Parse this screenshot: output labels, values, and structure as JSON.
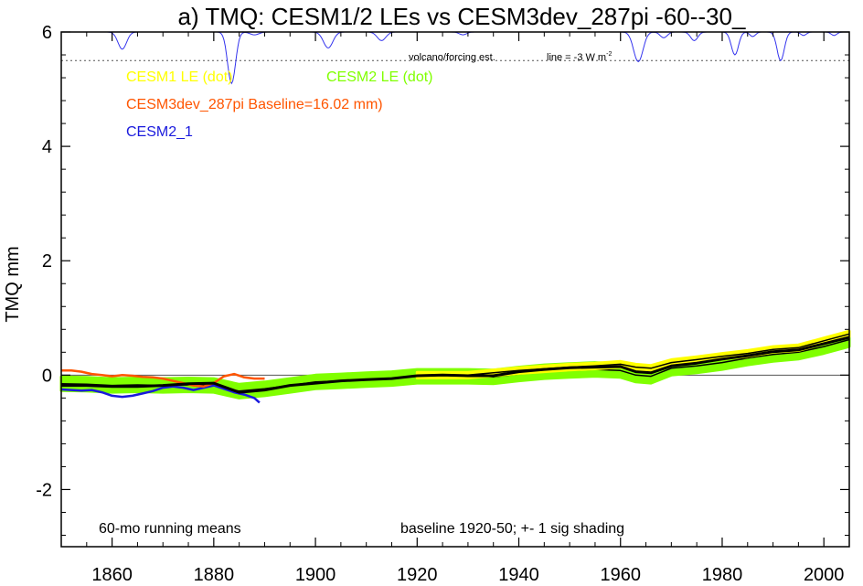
{
  "chart_data": {
    "type": "line",
    "title": "a) TMQ: CESM1/2 LEs vs CESM3dev_287pi -60--30_",
    "xlabel": "",
    "ylabel": "TMQ mm",
    "xlim": [
      1850,
      2005
    ],
    "ylim": [
      -3,
      6
    ],
    "x_ticks": [
      1860,
      1880,
      1900,
      1920,
      1940,
      1960,
      1980,
      2000
    ],
    "y_ticks": [
      -2,
      0,
      2,
      4,
      6
    ],
    "x_ticks_minor": [
      1850,
      1855,
      1865,
      1870,
      1875,
      1885,
      1890,
      1895,
      1905,
      1910,
      1915,
      1925,
      1930,
      1935,
      1945,
      1950,
      1955,
      1965,
      1970,
      1975,
      1985,
      1990,
      1995
    ],
    "y_ticks_minor": [
      -2.8,
      -2.4,
      -1.6,
      -1.2,
      -0.8,
      -0.4,
      0.4,
      0.8,
      1.2,
      1.6,
      2.4,
      2.8,
      3.2,
      3.6,
      4.4,
      4.8,
      5.2,
      5.6
    ],
    "legend": [
      {
        "label": "CESM1 LE (dot)",
        "color": "#ffff00"
      },
      {
        "label": "CESM2 LE (dot)",
        "color": "#80ff00"
      },
      {
        "label": "CESM3dev_287pi Baseline=16.02 mm)",
        "color": "#ff5500"
      },
      {
        "label": "CESM2_1",
        "color": "#1a1add"
      }
    ],
    "annotations": {
      "volcano": "volcano/forcing est.",
      "line_label": "line = -3 W m",
      "line_sup": "-2",
      "running": "60-mo running means",
      "baseline": "baseline 1920-50; +- 1 sig shading"
    },
    "reference_lines": {
      "zero": 0,
      "forcing_dotted": 5.5
    },
    "series": [
      {
        "name": "CESM1 LE (dot)",
        "color": "#ffff00",
        "x": [
          1920,
          1930,
          1940,
          1950,
          1955,
          1960,
          1963,
          1966,
          1970,
          1975,
          1980,
          1985,
          1990,
          1995,
          2000,
          2005
        ],
        "y": [
          0.0,
          0.0,
          0.08,
          0.14,
          0.16,
          0.19,
          0.14,
          0.12,
          0.22,
          0.27,
          0.33,
          0.38,
          0.45,
          0.48,
          0.6,
          0.72
        ],
        "band": 0.05
      },
      {
        "name": "CESM2 LE (dot)",
        "color": "#80ff00",
        "x": [
          1850,
          1855,
          1860,
          1865,
          1870,
          1875,
          1880,
          1885,
          1890,
          1895,
          1900,
          1905,
          1910,
          1915,
          1920,
          1925,
          1930,
          1935,
          1940,
          1945,
          1950,
          1955,
          1960,
          1963,
          1966,
          1970,
          1975,
          1980,
          1985,
          1990,
          1995,
          2000,
          2005
        ],
        "y": [
          -0.15,
          -0.16,
          -0.18,
          -0.17,
          -0.18,
          -0.17,
          -0.18,
          -0.28,
          -0.24,
          -0.18,
          -0.12,
          -0.1,
          -0.08,
          -0.06,
          -0.02,
          -0.02,
          -0.02,
          -0.03,
          0.02,
          0.06,
          0.08,
          0.1,
          0.08,
          0.0,
          -0.02,
          0.12,
          0.16,
          0.22,
          0.3,
          0.36,
          0.4,
          0.5,
          0.62
        ],
        "band": 0.12
      },
      {
        "name": "CESM3dev_287pi Baseline=16.02 mm)",
        "color": "#ff5500",
        "x": [
          1850,
          1852,
          1854,
          1856,
          1858,
          1860,
          1862,
          1864,
          1866,
          1868,
          1870,
          1872,
          1874,
          1876,
          1878,
          1880,
          1882,
          1884,
          1886,
          1888,
          1890
        ],
        "y": [
          0.08,
          0.08,
          0.06,
          0.02,
          0.0,
          -0.02,
          0.0,
          -0.01,
          -0.03,
          -0.04,
          -0.06,
          -0.1,
          -0.14,
          -0.18,
          -0.2,
          -0.14,
          -0.02,
          0.02,
          -0.04,
          -0.06,
          -0.06
        ]
      },
      {
        "name": "CESM2_1",
        "color": "#1a1add",
        "x": [
          1850,
          1852,
          1854,
          1856,
          1858,
          1860,
          1862,
          1864,
          1866,
          1868,
          1870,
          1872,
          1874,
          1876,
          1878,
          1880,
          1882,
          1884,
          1886,
          1888,
          1889
        ],
        "y": [
          -0.25,
          -0.26,
          -0.27,
          -0.26,
          -0.3,
          -0.36,
          -0.38,
          -0.36,
          -0.32,
          -0.28,
          -0.22,
          -0.2,
          -0.22,
          -0.26,
          -0.22,
          -0.18,
          -0.24,
          -0.3,
          -0.34,
          -0.4,
          -0.48
        ]
      },
      {
        "name": "",
        "color": "#000000",
        "x": [
          1850,
          1855,
          1860,
          1865,
          1870,
          1875,
          1880,
          1885,
          1890,
          1895,
          1900,
          1905,
          1910,
          1915,
          1920,
          1925,
          1930,
          1935,
          1940,
          1945,
          1950,
          1955,
          1960,
          1963,
          1966,
          1970,
          1975,
          1980,
          1985,
          1990,
          1995,
          2000,
          2005
        ],
        "y": [
          -0.18,
          -0.18,
          -0.2,
          -0.2,
          -0.18,
          -0.15,
          -0.14,
          -0.3,
          -0.26,
          -0.18,
          -0.14,
          -0.1,
          -0.08,
          -0.06,
          -0.01,
          0.0,
          -0.01,
          -0.01,
          0.06,
          0.1,
          0.13,
          0.14,
          0.15,
          0.06,
          0.04,
          0.16,
          0.21,
          0.28,
          0.34,
          0.41,
          0.44,
          0.55,
          0.66
        ]
      }
    ],
    "forcing": {
      "color": "#3333ee",
      "baseline": 6.0,
      "bottom": 5.4,
      "dips": [
        {
          "year": 1862,
          "depth": 5.7,
          "width": 1.2
        },
        {
          "year": 1883.5,
          "depth": 5.1,
          "width": 1.1
        },
        {
          "year": 1888,
          "depth": 5.95,
          "width": 1.2
        },
        {
          "year": 1902.5,
          "depth": 5.72,
          "width": 1.3
        },
        {
          "year": 1913,
          "depth": 5.85,
          "width": 1.2
        },
        {
          "year": 1929,
          "depth": 5.95,
          "width": 1.0
        },
        {
          "year": 1963.5,
          "depth": 5.48,
          "width": 1.3
        },
        {
          "year": 1968.5,
          "depth": 5.9,
          "width": 1.0
        },
        {
          "year": 1974.5,
          "depth": 5.85,
          "width": 1.0
        },
        {
          "year": 1982.5,
          "depth": 5.6,
          "width": 1.0
        },
        {
          "year": 1986,
          "depth": 5.92,
          "width": 0.8
        },
        {
          "year": 1991.5,
          "depth": 5.5,
          "width": 1.0
        },
        {
          "year": 1996,
          "depth": 5.94,
          "width": 0.8
        },
        {
          "year": 2002,
          "depth": 5.94,
          "width": 0.8
        }
      ]
    }
  }
}
